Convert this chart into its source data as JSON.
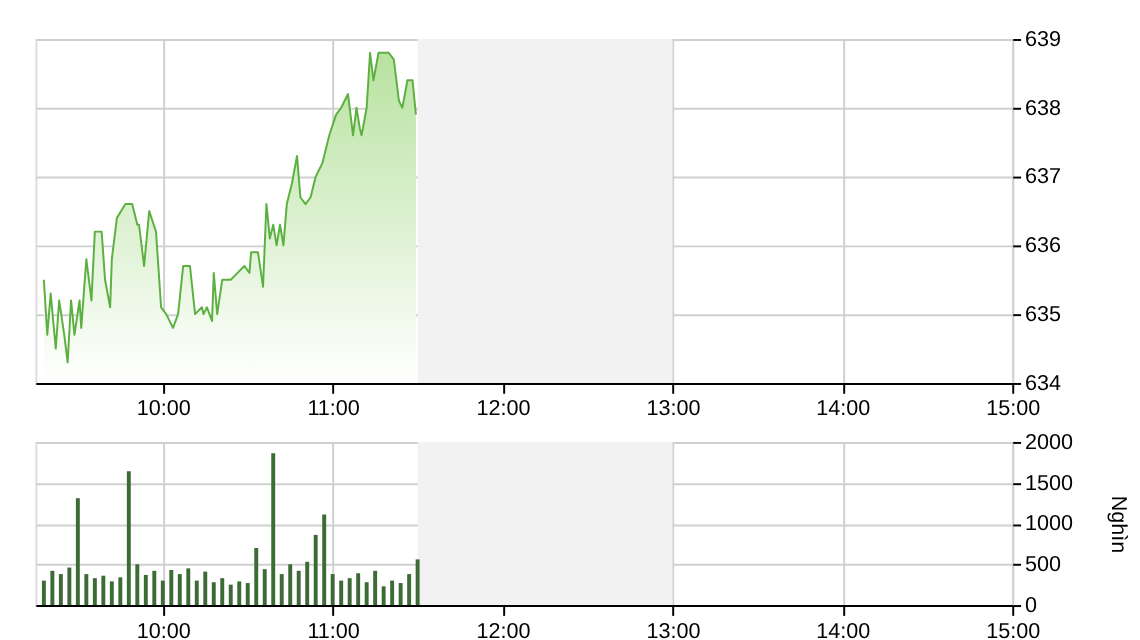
{
  "chart_data": [
    {
      "type": "area",
      "x": [
        9.3,
        9.32,
        9.34,
        9.37,
        9.39,
        9.42,
        9.44,
        9.46,
        9.48,
        9.51,
        9.52,
        9.55,
        9.58,
        9.6,
        9.64,
        9.66,
        9.69,
        9.7,
        9.73,
        9.78,
        9.82,
        9.85,
        9.86,
        9.89,
        9.92,
        9.96,
        9.99,
        10.02,
        10.06,
        10.09,
        10.12,
        10.16,
        10.19,
        10.23,
        10.24,
        10.26,
        10.29,
        10.3,
        10.32,
        10.35,
        10.4,
        10.44,
        10.48,
        10.51,
        10.52,
        10.56,
        10.59,
        10.61,
        10.63,
        10.65,
        10.67,
        10.69,
        10.71,
        10.73,
        10.76,
        10.79,
        10.81,
        10.84,
        10.87,
        10.9,
        10.94,
        10.98,
        11.02,
        11.05,
        11.09,
        11.12,
        11.14,
        11.16,
        11.17,
        11.2,
        11.22,
        11.24,
        11.27,
        11.33,
        11.36,
        11.39,
        11.41,
        11.44,
        11.47,
        11.49
      ],
      "series": [
        {
          "color": "#5cb040",
          "values": [
            635.5,
            634.7,
            635.3,
            634.5,
            635.2,
            634.7,
            634.3,
            635.2,
            634.7,
            635.2,
            634.8,
            635.8,
            635.2,
            636.2,
            636.2,
            635.5,
            635.1,
            635.8,
            636.4,
            636.6,
            636.6,
            636.3,
            636.3,
            635.7,
            636.5,
            636.2,
            635.1,
            635.0,
            634.8,
            635.0,
            635.7,
            635.7,
            635.0,
            635.1,
            635.0,
            635.1,
            634.9,
            635.6,
            635.0,
            635.5,
            635.5,
            635.6,
            635.7,
            635.6,
            635.9,
            635.9,
            635.4,
            636.6,
            636.1,
            636.3,
            636.0,
            636.3,
            636.0,
            636.6,
            636.9,
            637.3,
            636.7,
            636.6,
            636.7,
            637.0,
            637.2,
            637.6,
            637.9,
            638.0,
            638.2,
            637.6,
            638.0,
            637.7,
            637.6,
            638.0,
            638.8,
            638.4,
            638.8,
            638.8,
            638.7,
            638.1,
            638.0,
            638.4,
            638.4,
            637.9
          ]
        }
      ],
      "xlim": [
        9.25,
        15
      ],
      "xticks": [
        {
          "value": 10,
          "label": "10:00"
        },
        {
          "value": 11,
          "label": "11:00"
        },
        {
          "value": 12,
          "label": "12:00"
        },
        {
          "value": 13,
          "label": "13:00"
        },
        {
          "value": 14,
          "label": "14:00"
        },
        {
          "value": 15,
          "label": "15:00"
        }
      ],
      "ylim": [
        634,
        639
      ],
      "yticks": [
        634,
        635,
        636,
        637,
        638,
        639
      ],
      "grid": true,
      "bands": [
        {
          "axis": "x",
          "from": 11.5,
          "to": 13,
          "color": "#f2f2f2"
        }
      ]
    },
    {
      "type": "bar",
      "x": [
        9.3,
        9.35,
        9.4,
        9.45,
        9.5,
        9.55,
        9.6,
        9.65,
        9.7,
        9.75,
        9.8,
        9.85,
        9.9,
        9.95,
        10.0,
        10.05,
        10.1,
        10.15,
        10.2,
        10.25,
        10.3,
        10.35,
        10.4,
        10.45,
        10.5,
        10.55,
        10.6,
        10.65,
        10.7,
        10.75,
        10.8,
        10.85,
        10.9,
        10.95,
        11.0,
        11.05,
        11.1,
        11.15,
        11.2,
        11.25,
        11.3,
        11.35,
        11.4,
        11.45,
        11.5
      ],
      "series": [
        {
          "color": "#3d6b35",
          "values": [
            300,
            420,
            380,
            460,
            1310,
            380,
            330,
            360,
            290,
            340,
            1640,
            500,
            370,
            420,
            300,
            430,
            380,
            450,
            300,
            410,
            280,
            330,
            250,
            290,
            270,
            700,
            440,
            1860,
            380,
            500,
            420,
            530,
            860,
            1110,
            380,
            300,
            330,
            390,
            280,
            420,
            230,
            300,
            270,
            380,
            560
          ]
        }
      ],
      "ylabel": "Nghìn",
      "xlim": [
        9.25,
        15
      ],
      "xticks": [
        {
          "value": 10,
          "label": "10:00"
        },
        {
          "value": 11,
          "label": "11:00"
        },
        {
          "value": 12,
          "label": "12:00"
        },
        {
          "value": 13,
          "label": "13:00"
        },
        {
          "value": 14,
          "label": "14:00"
        },
        {
          "value": 15,
          "label": "15:00"
        }
      ],
      "ylim": [
        0,
        2000
      ],
      "yticks": [
        0,
        500,
        1000,
        1500,
        2000
      ],
      "grid": true,
      "bands": [
        {
          "axis": "x",
          "from": 11.5,
          "to": 13,
          "color": "#f2f2f2"
        }
      ]
    }
  ]
}
